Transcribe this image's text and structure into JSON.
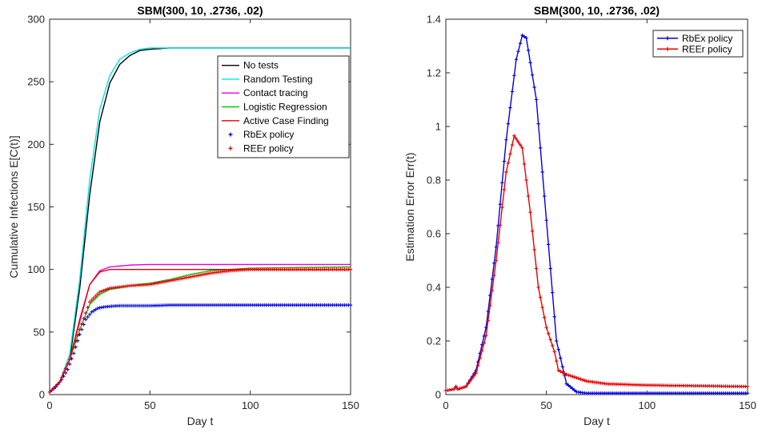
{
  "chart_data": [
    {
      "type": "line",
      "title": "SBM(300, 10, .2736, .02)",
      "xlabel": "Day t",
      "ylabel": "Cumulative Infections E[C(t)]",
      "xlim": [
        0,
        150
      ],
      "ylim": [
        0,
        300
      ],
      "xticks": [
        0,
        50,
        100,
        150
      ],
      "yticks": [
        0,
        50,
        100,
        150,
        200,
        250,
        300
      ],
      "grid": false,
      "legend_position": "upper-right",
      "series": [
        {
          "name": "No tests",
          "style": "line",
          "color": "#000000",
          "x": [
            0,
            5,
            10,
            15,
            20,
            25,
            30,
            35,
            40,
            45,
            50,
            60,
            80,
            100,
            150
          ],
          "y": [
            2,
            10,
            28,
            85,
            160,
            218,
            249,
            264,
            271,
            275,
            276,
            277,
            277,
            277,
            277
          ]
        },
        {
          "name": "Random Testing",
          "style": "line",
          "color": "#00e5e5",
          "x": [
            0,
            5,
            10,
            15,
            20,
            25,
            30,
            35,
            40,
            45,
            50,
            60,
            80,
            100,
            150
          ],
          "y": [
            2,
            10,
            32,
            92,
            172,
            228,
            255,
            268,
            273,
            276,
            277,
            277,
            277,
            277,
            277
          ]
        },
        {
          "name": "Contact tracing",
          "style": "line",
          "color": "#e500e5",
          "x": [
            0,
            5,
            10,
            15,
            20,
            25,
            30,
            40,
            50,
            60,
            80,
            100,
            150
          ],
          "y": [
            2,
            10,
            28,
            58,
            88,
            99,
            102,
            103.5,
            104,
            104,
            104,
            104,
            104
          ]
        },
        {
          "name": "Logistic Regression",
          "style": "line",
          "color": "#00cc00",
          "x": [
            0,
            5,
            10,
            15,
            20,
            25,
            30,
            40,
            50,
            60,
            70,
            80,
            100,
            120,
            150
          ],
          "y": [
            2,
            10,
            28,
            52,
            72,
            80,
            84,
            87,
            89,
            92,
            96,
            99,
            101,
            101.5,
            102
          ]
        },
        {
          "name": "Active Case Finding",
          "style": "line",
          "color": "#e50000",
          "x": [
            0,
            5,
            10,
            15,
            20,
            25,
            30,
            40,
            50,
            60,
            80,
            100,
            150
          ],
          "y": [
            2,
            10,
            28,
            60,
            88,
            98,
            100,
            100,
            100,
            100,
            100,
            100,
            100
          ]
        },
        {
          "name": "RbEx policy",
          "style": "markers",
          "color": "#0000e5",
          "x": [
            0,
            3,
            6,
            9,
            12,
            15,
            18,
            21,
            24,
            27,
            30,
            35,
            40,
            50,
            60,
            80,
            100,
            150
          ],
          "y": [
            2,
            6,
            12,
            20,
            33,
            48,
            60,
            66,
            69,
            70,
            70.5,
            71,
            71,
            71,
            71.5,
            71.5,
            71.5,
            71.5
          ]
        },
        {
          "name": "REEr policy",
          "style": "markers",
          "color": "#e50000",
          "x": [
            0,
            5,
            10,
            15,
            20,
            25,
            30,
            35,
            40,
            50,
            60,
            70,
            80,
            90,
            100,
            150
          ],
          "y": [
            2,
            10,
            28,
            52,
            74,
            82,
            85,
            86,
            87,
            88,
            91,
            94,
            97,
            99,
            100,
            100
          ]
        }
      ]
    },
    {
      "type": "line",
      "title": "SBM(300, 10, .2736, .02)",
      "xlabel": "Day t",
      "ylabel": "Estimation Error Err(t)",
      "xlim": [
        0,
        150
      ],
      "ylim": [
        0,
        1.4
      ],
      "xticks": [
        0,
        50,
        100,
        150
      ],
      "yticks": [
        0,
        0.2,
        0.4,
        0.6,
        0.8,
        1,
        1.2,
        1.4
      ],
      "grid": false,
      "legend_position": "upper-right",
      "series": [
        {
          "name": "RbEx policy",
          "style": "line-markers",
          "color": "#0000e5",
          "x": [
            0,
            4,
            5,
            6,
            10,
            15,
            20,
            25,
            30,
            35,
            38,
            40,
            45,
            50,
            55,
            60,
            65,
            70,
            80,
            100,
            150
          ],
          "y": [
            0.015,
            0.02,
            0.03,
            0.02,
            0.03,
            0.09,
            0.25,
            0.55,
            0.95,
            1.25,
            1.34,
            1.33,
            1.1,
            0.65,
            0.2,
            0.04,
            0.01,
            0.005,
            0.005,
            0.005,
            0.005
          ]
        },
        {
          "name": "REEr policy",
          "style": "line-markers",
          "color": "#e50000",
          "x": [
            0,
            4,
            5,
            6,
            10,
            15,
            20,
            25,
            30,
            34,
            38,
            42,
            46,
            50,
            54,
            56,
            60,
            70,
            80,
            100,
            150
          ],
          "y": [
            0.015,
            0.02,
            0.03,
            0.02,
            0.03,
            0.08,
            0.22,
            0.5,
            0.83,
            0.965,
            0.92,
            0.68,
            0.4,
            0.25,
            0.16,
            0.09,
            0.075,
            0.05,
            0.04,
            0.035,
            0.03
          ]
        }
      ]
    }
  ]
}
